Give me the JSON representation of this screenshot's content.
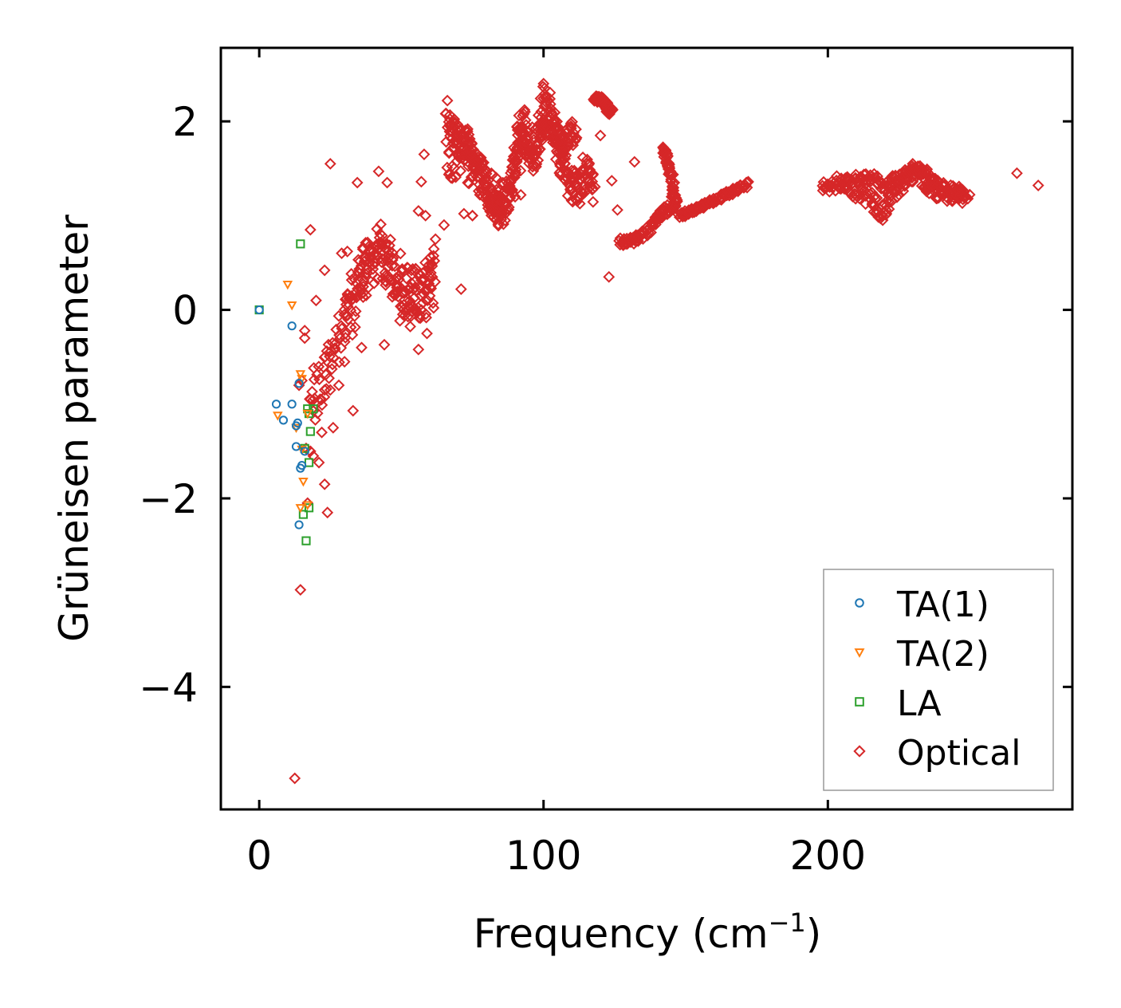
{
  "chart_data": {
    "type": "scatter",
    "title": "",
    "xlabel": "Frequency (cm",
    "xlabel_sup": "−1",
    "xlabel_close": ")",
    "ylabel": "Grüneisen parameter",
    "xlim": [
      -13.5,
      286
    ],
    "ylim": [
      -5.3,
      2.78
    ],
    "x_ticks": [
      0,
      100,
      200
    ],
    "x_tick_labels": [
      "0",
      "100",
      "200"
    ],
    "y_ticks": [
      2,
      0,
      -2,
      -4
    ],
    "y_tick_labels": [
      "2",
      "0",
      "−2",
      "−4"
    ],
    "legend_position": "lower-right",
    "grid": false,
    "series": [
      {
        "name": "TA(1)",
        "marker": "circle",
        "color": "#1f77b4",
        "points": [
          [
            0,
            0
          ],
          [
            11.5,
            -0.17
          ],
          [
            6,
            -1.0
          ],
          [
            11.5,
            -1.0
          ],
          [
            8.5,
            -1.17
          ],
          [
            13,
            -1.23
          ],
          [
            14,
            -0.78
          ],
          [
            13,
            -1.45
          ],
          [
            14.5,
            -1.68
          ],
          [
            14,
            -2.28
          ],
          [
            15,
            -1.65
          ],
          [
            16,
            -1.5
          ],
          [
            13.5,
            -1.2
          ]
        ]
      },
      {
        "name": "TA(2)",
        "marker": "triangle-down",
        "color": "#ff7f0e",
        "points": [
          [
            10,
            0.27
          ],
          [
            11.5,
            0.05
          ],
          [
            6.5,
            -1.12
          ],
          [
            14.5,
            -0.68
          ],
          [
            15,
            -0.73
          ],
          [
            15.5,
            -1.82
          ],
          [
            14.5,
            -2.1
          ],
          [
            17,
            -2.07
          ],
          [
            15,
            -1.48
          ],
          [
            13,
            -1.25
          ],
          [
            17,
            -1.1
          ]
        ]
      },
      {
        "name": "LA",
        "marker": "square",
        "color": "#2ca02c",
        "points": [
          [
            0,
            0
          ],
          [
            14.5,
            0.7
          ],
          [
            17,
            -1.05
          ],
          [
            17.5,
            -1.1
          ],
          [
            18,
            -1.29
          ],
          [
            17.5,
            -1.62
          ],
          [
            16,
            -1.47
          ],
          [
            17.5,
            -2.1
          ],
          [
            15.5,
            -2.17
          ],
          [
            16.5,
            -2.45
          ],
          [
            19,
            -1.05
          ]
        ]
      },
      {
        "name": "Optical",
        "marker": "diamond",
        "color": "#d62728",
        "points": [
          [
            25,
            1.55
          ],
          [
            34.5,
            1.35
          ],
          [
            42,
            1.47
          ],
          [
            45,
            1.35
          ],
          [
            58,
            1.65
          ],
          [
            57,
            1.36
          ],
          [
            58.5,
            1.0
          ],
          [
            56,
            1.05
          ],
          [
            72,
            1.02
          ],
          [
            75,
            1.0
          ],
          [
            71,
            0.22
          ],
          [
            75,
            1.0
          ],
          [
            81,
            1.1
          ],
          [
            84,
            1.08
          ],
          [
            90,
            1.2
          ],
          [
            92,
            1.22
          ],
          [
            120,
            1.85
          ],
          [
            124,
            1.37
          ],
          [
            126,
            1.06
          ],
          [
            132,
            1.57
          ],
          [
            127,
            0.76
          ],
          [
            129,
            0.7
          ],
          [
            123,
            0.35
          ],
          [
            141,
            1.05
          ],
          [
            145,
            1.2
          ],
          [
            146,
            1.35
          ],
          [
            147,
            1.15
          ],
          [
            14,
            -0.8
          ],
          [
            15,
            -0.75
          ],
          [
            16,
            -0.22
          ],
          [
            16,
            -0.3
          ],
          [
            20,
            0.1
          ],
          [
            22,
            -1.3
          ],
          [
            23,
            -1.85
          ],
          [
            24,
            -2.15
          ],
          [
            12.5,
            -4.97
          ],
          [
            14.5,
            -2.97
          ],
          [
            17,
            -2.05
          ],
          [
            18,
            -1.5
          ],
          [
            19,
            -1.55
          ],
          [
            21,
            -1.62
          ],
          [
            16.5,
            -1.47
          ],
          [
            26,
            -1.25
          ],
          [
            33,
            -1.07
          ],
          [
            36,
            -0.4
          ],
          [
            44,
            -0.37
          ],
          [
            56,
            -0.42
          ],
          [
            59,
            -0.25
          ],
          [
            60,
            0.15
          ],
          [
            62,
            0.75
          ],
          [
            65,
            0.9
          ],
          [
            18,
            0.85
          ],
          [
            29,
            0.6
          ],
          [
            31,
            0.62
          ],
          [
            23,
            0.42
          ],
          [
            18,
            -0.95
          ],
          [
            20,
            -1.0
          ],
          [
            23,
            -0.85
          ],
          [
            25,
            -0.85
          ],
          [
            28,
            -0.8
          ],
          [
            30,
            -0.55
          ],
          [
            266.5,
            1.45
          ],
          [
            274,
            1.32
          ],
          [
            100,
            2.4
          ],
          [
            172,
            1.36
          ],
          [
            168,
            1.3
          ],
          [
            165,
            1.25
          ]
        ]
      }
    ],
    "optical_bands": [
      {
        "x": [
          18,
          22,
          26,
          30,
          34,
          38,
          42,
          46,
          50,
          54,
          58,
          62
        ],
        "y": [
          -1.0,
          -0.75,
          -0.45,
          -0.2,
          0.1,
          0.4,
          0.6,
          0.5,
          0.3,
          0.2,
          0.15,
          0.3
        ],
        "spread": 0.28
      },
      {
        "x": [
          30,
          34,
          38,
          42,
          46,
          50,
          54,
          58,
          62
        ],
        "y": [
          0.0,
          0.3,
          0.55,
          0.75,
          0.45,
          0.0,
          0.05,
          0.3,
          0.5
        ],
        "spread": 0.22
      },
      {
        "x": [
          66,
          68,
          70,
          72,
          74,
          76,
          78,
          80,
          82,
          84,
          86,
          88,
          90,
          92,
          94
        ],
        "y": [
          2.1,
          1.95,
          1.8,
          1.85,
          1.75,
          1.6,
          1.45,
          1.3,
          1.15,
          1.05,
          1.1,
          1.3,
          1.6,
          1.95,
          2.05
        ],
        "spread": 0.18
      },
      {
        "x": [
          66,
          70,
          74,
          78,
          82,
          86,
          90,
          94,
          98,
          100,
          102,
          104,
          106,
          108,
          110,
          112,
          114,
          116,
          118
        ],
        "y": [
          1.6,
          1.55,
          1.5,
          1.4,
          1.25,
          1.15,
          1.55,
          1.8,
          1.85,
          2.2,
          2.1,
          1.85,
          1.6,
          1.45,
          1.3,
          1.25,
          1.4,
          1.55,
          1.2
        ],
        "spread": 0.2
      },
      {
        "x": [
          91,
          94,
          97,
          100,
          103,
          106,
          109,
          112
        ],
        "y": [
          2.0,
          1.7,
          1.55,
          1.9,
          2.0,
          1.75,
          1.85,
          1.9
        ],
        "spread": 0.12
      },
      {
        "x": [
          118,
          119,
          120,
          121,
          122,
          123,
          124
        ],
        "y": [
          2.25,
          2.24,
          2.22,
          2.2,
          2.17,
          2.12,
          2.1
        ],
        "spread": 0.04
      },
      {
        "x": [
          127,
          130,
          133,
          136,
          139,
          142,
          145
        ],
        "y": [
          0.7,
          0.72,
          0.76,
          0.82,
          0.92,
          1.02,
          1.12
        ],
        "spread": 0.05
      },
      {
        "x": [
          142,
          143,
          144,
          145,
          146,
          147
        ],
        "y": [
          1.7,
          1.65,
          1.55,
          1.4,
          1.2,
          1.05
        ],
        "spread": 0.05
      },
      {
        "x": [
          148,
          152,
          156,
          160,
          164,
          168,
          172
        ],
        "y": [
          1.0,
          1.05,
          1.1,
          1.16,
          1.22,
          1.28,
          1.34
        ],
        "spread": 0.03
      },
      {
        "x": [
          198,
          203,
          208,
          212,
          216,
          219,
          222,
          226,
          230,
          233,
          236,
          240,
          244,
          248
        ],
        "y": [
          1.35,
          1.33,
          1.3,
          1.25,
          1.15,
          1.0,
          1.2,
          1.35,
          1.45,
          1.4,
          1.3,
          1.25,
          1.25,
          1.22
        ],
        "spread": 0.1
      },
      {
        "x": [
          205,
          210,
          215,
          220,
          225,
          230,
          235,
          240,
          245,
          250
        ],
        "y": [
          1.35,
          1.38,
          1.4,
          1.32,
          1.4,
          1.5,
          1.45,
          1.3,
          1.22,
          1.24
        ],
        "spread": 0.06
      }
    ]
  }
}
